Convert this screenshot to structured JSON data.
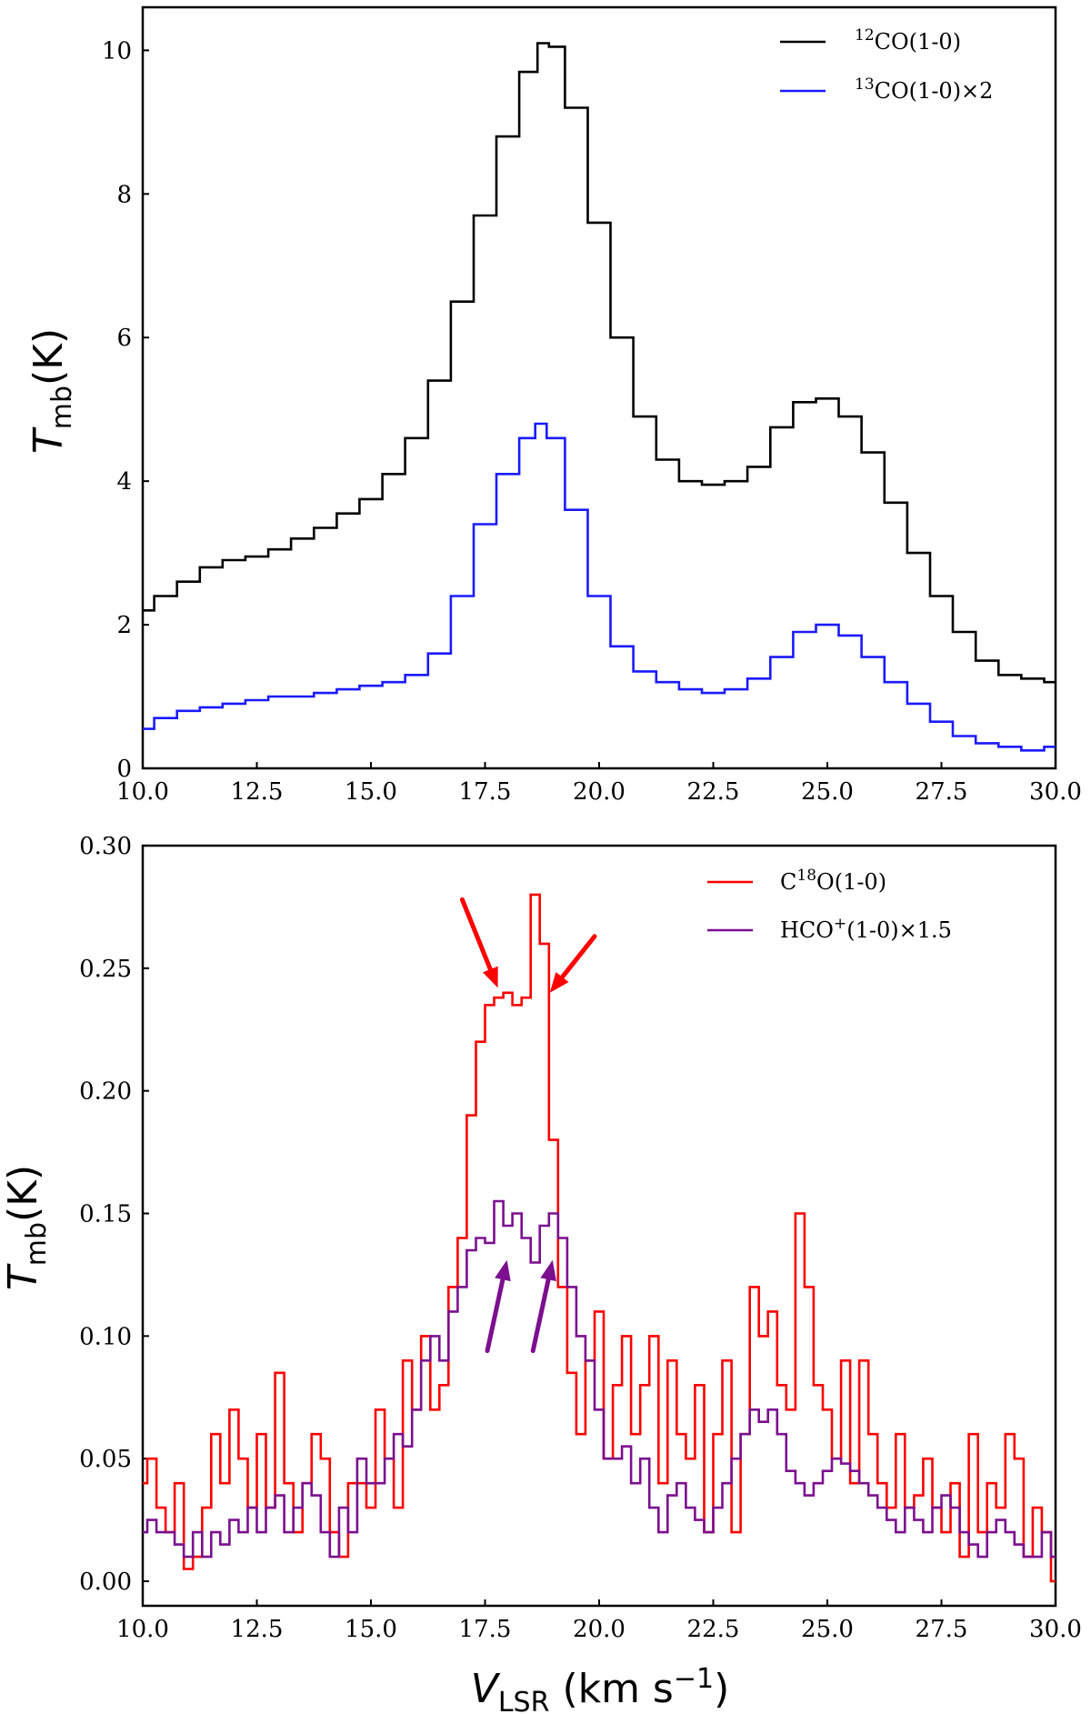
{
  "chart_data": [
    {
      "type": "line",
      "step": true,
      "panel": "top",
      "xlabel": "",
      "ylabel": {
        "main": "T",
        "sub": "mb",
        "rest": "(K)"
      },
      "xlim": [
        10.0,
        30.0
      ],
      "ylim": [
        0,
        10.6
      ],
      "x_ticks": [
        "10.0",
        "12.5",
        "15.0",
        "17.5",
        "20.0",
        "22.5",
        "25.0",
        "27.5",
        "30.0"
      ],
      "y_ticks": [
        "0",
        "2",
        "4",
        "6",
        "8",
        "10"
      ],
      "series": [
        {
          "name": "12CO(1-0)",
          "label": {
            "sup": "12",
            "text": "CO(1-0)"
          },
          "color": "#000000",
          "x": [
            10.0,
            10.5,
            11.0,
            11.5,
            12.0,
            12.5,
            13.0,
            13.5,
            14.0,
            14.5,
            15.0,
            15.5,
            16.0,
            16.5,
            17.0,
            17.5,
            18.0,
            18.5,
            18.8,
            19.0,
            19.5,
            20.0,
            20.5,
            21.0,
            21.5,
            22.0,
            22.5,
            23.0,
            23.5,
            24.0,
            24.5,
            25.0,
            25.5,
            26.0,
            26.5,
            27.0,
            27.5,
            28.0,
            28.5,
            29.0,
            29.5,
            30.0
          ],
          "values": [
            2.2,
            2.4,
            2.6,
            2.8,
            2.9,
            2.95,
            3.05,
            3.2,
            3.35,
            3.55,
            3.75,
            4.1,
            4.6,
            5.4,
            6.5,
            7.7,
            8.8,
            9.7,
            10.1,
            10.05,
            9.2,
            7.6,
            6.0,
            4.9,
            4.3,
            4.0,
            3.95,
            4.0,
            4.2,
            4.75,
            5.1,
            5.15,
            4.9,
            4.4,
            3.7,
            3.0,
            2.4,
            1.9,
            1.5,
            1.3,
            1.25,
            1.2
          ]
        },
        {
          "name": "13CO(1-0)x2",
          "label": {
            "sup": "13",
            "text": "CO(1-0)×2"
          },
          "color": "#1a1aff",
          "x": [
            10.0,
            10.5,
            11.0,
            11.5,
            12.0,
            12.5,
            13.0,
            13.5,
            14.0,
            14.5,
            15.0,
            15.5,
            16.0,
            16.5,
            17.0,
            17.5,
            18.0,
            18.5,
            18.7,
            19.0,
            19.5,
            20.0,
            20.5,
            21.0,
            21.5,
            22.0,
            22.5,
            23.0,
            23.5,
            24.0,
            24.5,
            25.0,
            25.5,
            26.0,
            26.5,
            27.0,
            27.5,
            28.0,
            28.5,
            29.0,
            29.5,
            30.0
          ],
          "values": [
            0.55,
            0.7,
            0.8,
            0.85,
            0.9,
            0.95,
            1.0,
            1.0,
            1.05,
            1.1,
            1.15,
            1.2,
            1.3,
            1.6,
            2.4,
            3.4,
            4.1,
            4.6,
            4.8,
            4.6,
            3.6,
            2.4,
            1.7,
            1.35,
            1.2,
            1.1,
            1.05,
            1.1,
            1.25,
            1.55,
            1.9,
            2.0,
            1.85,
            1.55,
            1.2,
            0.9,
            0.65,
            0.45,
            0.35,
            0.3,
            0.25,
            0.3
          ]
        }
      ],
      "legend": "top-right"
    },
    {
      "type": "line",
      "step": true,
      "panel": "bottom",
      "xlabel": {
        "main": "V",
        "sub": "LSR",
        "rest": " (km s",
        "sup": "−1",
        "close": ")"
      },
      "ylabel": {
        "main": "T",
        "sub": "mb",
        "rest": "(K)"
      },
      "xlim": [
        10.0,
        30.0
      ],
      "ylim": [
        -0.01,
        0.3
      ],
      "x_ticks": [
        "10.0",
        "12.5",
        "15.0",
        "17.5",
        "20.0",
        "22.5",
        "25.0",
        "27.5",
        "30.0"
      ],
      "y_ticks": [
        "0.00",
        "0.05",
        "0.10",
        "0.15",
        "0.20",
        "0.25",
        "0.30"
      ],
      "series": [
        {
          "name": "C18O(1-0)",
          "label": {
            "pre": "C",
            "sup": "18",
            "text": "O(1-0)"
          },
          "color": "#ff0000",
          "x": [
            10.0,
            10.2,
            10.4,
            10.6,
            10.8,
            11.0,
            11.2,
            11.4,
            11.6,
            11.8,
            12.0,
            12.2,
            12.4,
            12.6,
            12.8,
            13.0,
            13.2,
            13.4,
            13.6,
            13.8,
            14.0,
            14.2,
            14.4,
            14.6,
            14.8,
            15.0,
            15.2,
            15.4,
            15.6,
            15.8,
            16.0,
            16.2,
            16.4,
            16.6,
            16.8,
            17.0,
            17.2,
            17.4,
            17.6,
            17.8,
            18.0,
            18.2,
            18.4,
            18.6,
            18.8,
            19.0,
            19.2,
            19.4,
            19.6,
            19.8,
            20.0,
            20.2,
            20.4,
            20.6,
            20.8,
            21.0,
            21.2,
            21.4,
            21.6,
            21.8,
            22.0,
            22.2,
            22.4,
            22.6,
            22.8,
            23.0,
            23.2,
            23.4,
            23.6,
            23.8,
            24.0,
            24.2,
            24.4,
            24.6,
            24.8,
            25.0,
            25.2,
            25.4,
            25.6,
            25.8,
            26.0,
            26.2,
            26.4,
            26.6,
            26.8,
            27.0,
            27.2,
            27.4,
            27.6,
            27.8,
            28.0,
            28.2,
            28.4,
            28.6,
            28.8,
            29.0,
            29.2,
            29.4,
            29.6,
            29.8,
            30.0
          ],
          "values": [
            0.04,
            0.05,
            0.03,
            0.02,
            0.04,
            0.005,
            0.01,
            0.03,
            0.06,
            0.04,
            0.07,
            0.05,
            0.03,
            0.06,
            0.03,
            0.085,
            0.04,
            0.02,
            0.04,
            0.06,
            0.05,
            0.02,
            0.01,
            0.04,
            0.04,
            0.03,
            0.07,
            0.05,
            0.03,
            0.09,
            0.07,
            0.1,
            0.07,
            0.08,
            0.12,
            0.14,
            0.19,
            0.22,
            0.235,
            0.238,
            0.24,
            0.235,
            0.238,
            0.28,
            0.26,
            0.18,
            0.12,
            0.085,
            0.06,
            0.09,
            0.11,
            0.05,
            0.08,
            0.1,
            0.06,
            0.08,
            0.1,
            0.04,
            0.09,
            0.06,
            0.05,
            0.08,
            0.02,
            0.06,
            0.09,
            0.02,
            0.06,
            0.12,
            0.1,
            0.11,
            0.08,
            0.07,
            0.15,
            0.12,
            0.08,
            0.07,
            0.05,
            0.09,
            0.04,
            0.09,
            0.06,
            0.04,
            0.03,
            0.06,
            0.03,
            0.035,
            0.05,
            0.03,
            0.02,
            0.04,
            0.01,
            0.06,
            0.02,
            0.04,
            0.03,
            0.06,
            0.05,
            0.01,
            0.03,
            0.02,
            0.0
          ]
        },
        {
          "name": "HCO+(1-0)x1.5",
          "label": {
            "pre": "HCO",
            "sup": "+",
            "text": "(1-0)×1.5"
          },
          "color": "#7b0f8f",
          "x": [
            10.0,
            10.2,
            10.4,
            10.6,
            10.8,
            11.0,
            11.2,
            11.4,
            11.6,
            11.8,
            12.0,
            12.2,
            12.4,
            12.6,
            12.8,
            13.0,
            13.2,
            13.4,
            13.6,
            13.8,
            14.0,
            14.2,
            14.4,
            14.6,
            14.8,
            15.0,
            15.2,
            15.4,
            15.6,
            15.8,
            16.0,
            16.2,
            16.4,
            16.6,
            16.8,
            17.0,
            17.2,
            17.4,
            17.6,
            17.8,
            18.0,
            18.2,
            18.4,
            18.6,
            18.8,
            19.0,
            19.2,
            19.4,
            19.6,
            19.8,
            20.0,
            20.2,
            20.4,
            20.6,
            20.8,
            21.0,
            21.2,
            21.4,
            21.6,
            21.8,
            22.0,
            22.2,
            22.4,
            22.6,
            22.8,
            23.0,
            23.2,
            23.4,
            23.6,
            23.8,
            24.0,
            24.2,
            24.4,
            24.6,
            24.8,
            25.0,
            25.2,
            25.4,
            25.6,
            25.8,
            26.0,
            26.2,
            26.4,
            26.6,
            26.8,
            27.0,
            27.2,
            27.4,
            27.6,
            27.8,
            28.0,
            28.2,
            28.4,
            28.6,
            28.8,
            29.0,
            29.2,
            29.4,
            29.6,
            29.8,
            30.0
          ],
          "values": [
            0.02,
            0.025,
            0.02,
            0.02,
            0.015,
            0.01,
            0.02,
            0.01,
            0.02,
            0.015,
            0.025,
            0.02,
            0.03,
            0.02,
            0.03,
            0.035,
            0.02,
            0.03,
            0.04,
            0.035,
            0.02,
            0.01,
            0.03,
            0.02,
            0.05,
            0.04,
            0.04,
            0.05,
            0.06,
            0.055,
            0.07,
            0.09,
            0.1,
            0.09,
            0.11,
            0.12,
            0.135,
            0.14,
            0.138,
            0.155,
            0.145,
            0.15,
            0.14,
            0.13,
            0.145,
            0.15,
            0.14,
            0.12,
            0.1,
            0.09,
            0.07,
            0.05,
            0.05,
            0.055,
            0.04,
            0.05,
            0.03,
            0.02,
            0.035,
            0.04,
            0.03,
            0.025,
            0.02,
            0.03,
            0.04,
            0.05,
            0.06,
            0.07,
            0.065,
            0.07,
            0.06,
            0.045,
            0.04,
            0.035,
            0.04,
            0.045,
            0.05,
            0.048,
            0.045,
            0.04,
            0.035,
            0.03,
            0.025,
            0.02,
            0.03,
            0.025,
            0.02,
            0.03,
            0.035,
            0.03,
            0.02,
            0.015,
            0.01,
            0.02,
            0.025,
            0.02,
            0.015,
            0.01,
            0.01,
            0.02,
            0.01
          ]
        }
      ],
      "legend": "top-right",
      "annotations": [
        {
          "kind": "arrow",
          "color": "#ff0000",
          "from": [
            17.0,
            0.278
          ],
          "to": [
            17.78,
            0.242
          ]
        },
        {
          "kind": "arrow",
          "color": "#ff0000",
          "from": [
            19.9,
            0.263
          ],
          "to": [
            18.92,
            0.24
          ]
        },
        {
          "kind": "arrow",
          "color": "#7b0f8f",
          "from": [
            17.55,
            0.094
          ],
          "to": [
            17.98,
            0.131
          ]
        },
        {
          "kind": "arrow",
          "color": "#7b0f8f",
          "from": [
            18.55,
            0.094
          ],
          "to": [
            18.98,
            0.131
          ]
        }
      ]
    }
  ]
}
